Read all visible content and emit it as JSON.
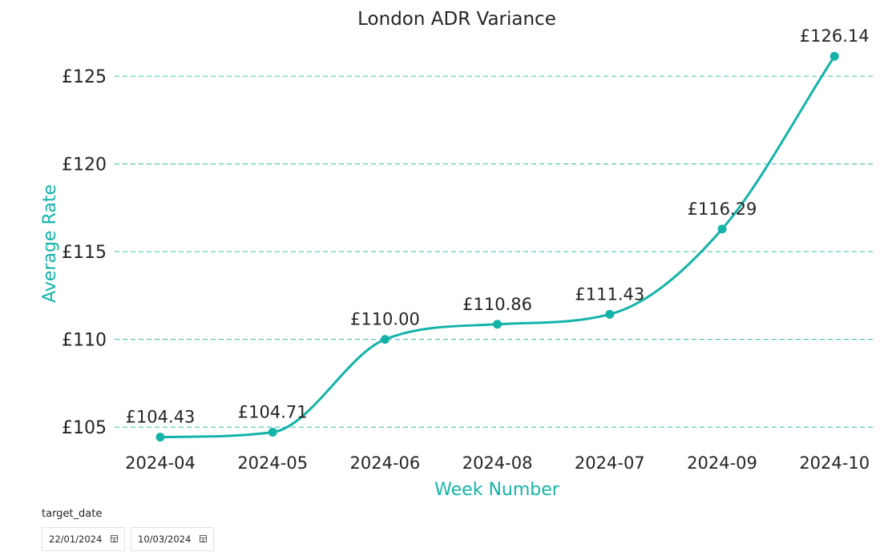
{
  "chart_data": {
    "type": "line",
    "title": "London ADR Variance",
    "xlabel": "Week Number",
    "ylabel": "Average Rate",
    "categories": [
      "2024-04",
      "2024-05",
      "2024-06",
      "2024-08",
      "2024-07",
      "2024-09",
      "2024-10"
    ],
    "series": [
      {
        "values": [
          104.43,
          104.71,
          110.0,
          110.86,
          111.43,
          116.29,
          126.14
        ],
        "labels": [
          "£104.43",
          "£104.71",
          "£110.00",
          "£110.86",
          "£111.43",
          "£116.29",
          "£126.14"
        ],
        "color": "#14b3a9"
      }
    ],
    "yticks": [
      105,
      110,
      115,
      120,
      125
    ],
    "ytick_labels": [
      "£105",
      "£110",
      "£115",
      "£120",
      "£125"
    ],
    "ylim": [
      104,
      127.2
    ],
    "grid": true,
    "line_style": "smooth"
  },
  "slicer": {
    "title": "target_date",
    "start_date": "22/01/2024",
    "end_date": "10/03/2024",
    "icon": "calendar-icon"
  }
}
